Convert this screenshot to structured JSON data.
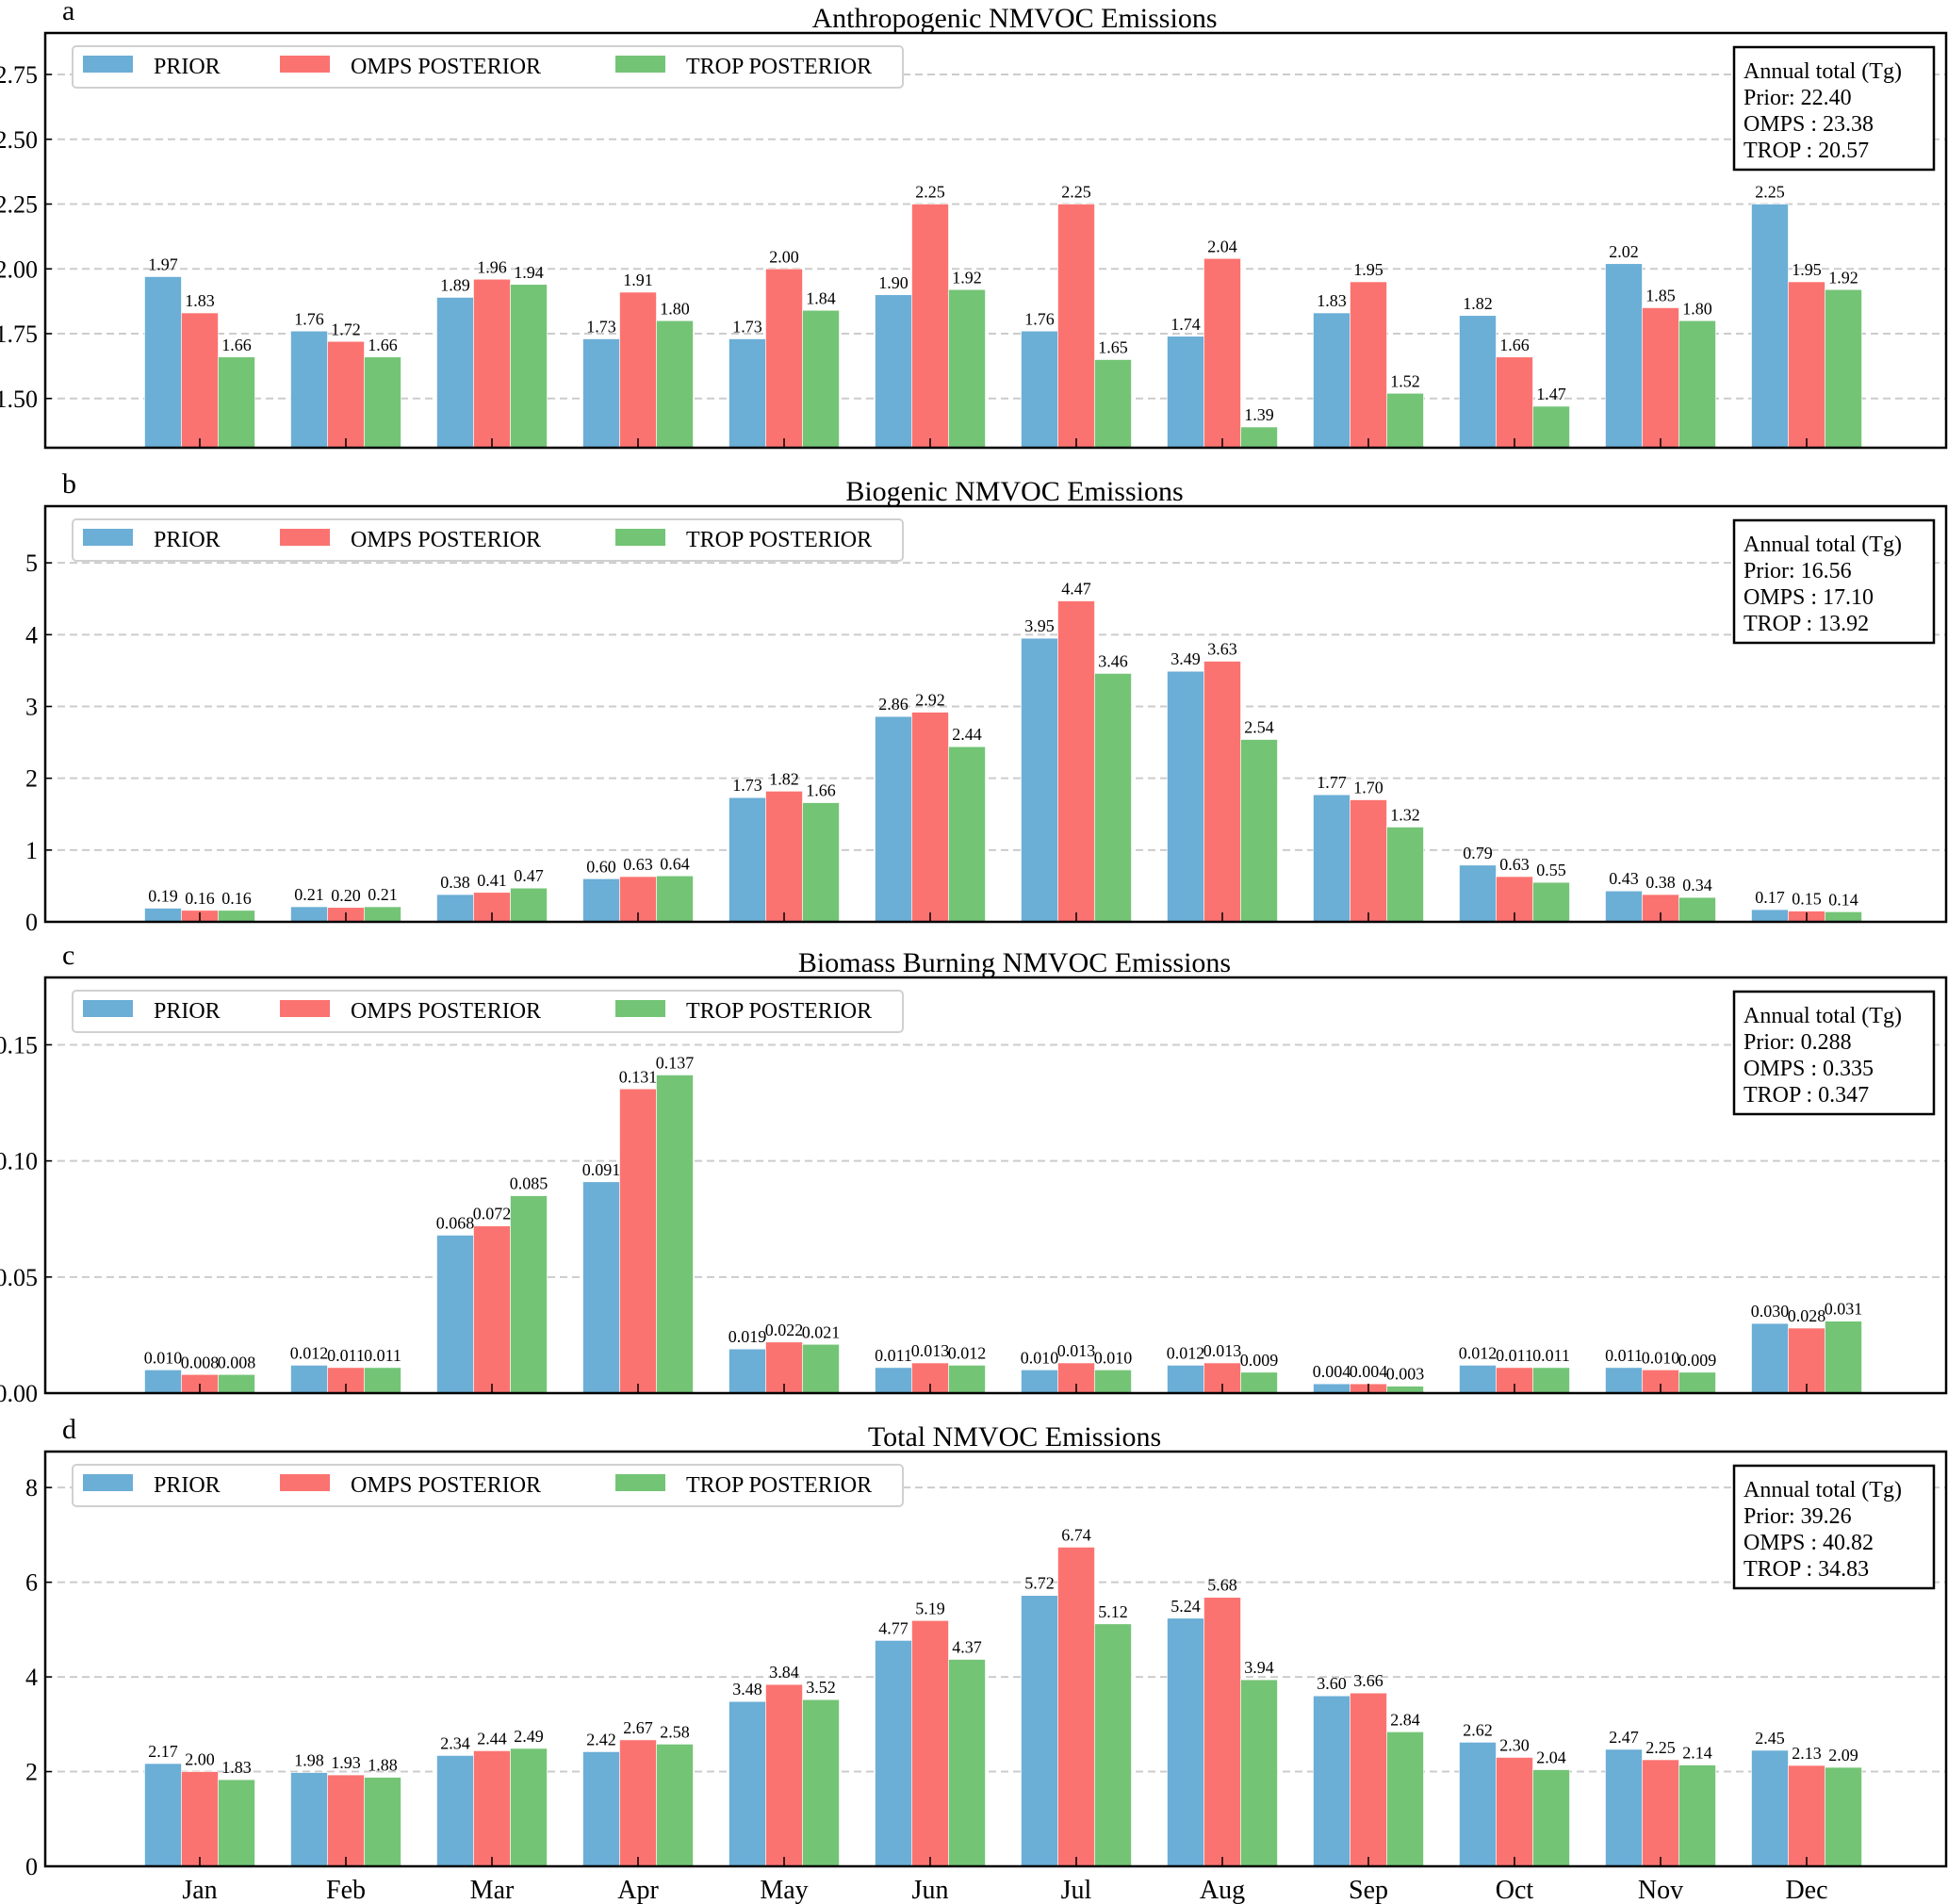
{
  "figure": {
    "months": [
      "Jan",
      "Feb",
      "Mar",
      "Apr",
      "May",
      "Jun",
      "Jul",
      "Aug",
      "Sep",
      "Oct",
      "Nov",
      "Dec"
    ],
    "legend_labels": [
      "PRIOR",
      "OMPS POSTERIOR",
      "TROP POSTERIOR"
    ],
    "colors": {
      "prior": "#6baed6",
      "omps": "#fb7370",
      "trop": "#74c476"
    }
  },
  "chart_data": [
    {
      "type": "bar",
      "panel_letter": "a",
      "title": "Anthropogenic NMVOC Emissions",
      "xlabel": "",
      "ylabel": "",
      "categories": [
        "Jan",
        "Feb",
        "Mar",
        "Apr",
        "May",
        "Jun",
        "Jul",
        "Aug",
        "Sep",
        "Oct",
        "Nov",
        "Dec"
      ],
      "ylim": [
        1.31,
        2.91
      ],
      "yticks": [
        1.5,
        1.75,
        2.0,
        2.25,
        2.5,
        2.75
      ],
      "ytick_labels": [
        "1.50",
        "1.75",
        "2.00",
        "2.25",
        "2.50",
        "2.75"
      ],
      "grid": true,
      "legend_position": "top-left",
      "decimals": 2,
      "series": [
        {
          "name": "PRIOR",
          "values": [
            1.97,
            1.76,
            1.89,
            1.73,
            1.73,
            1.9,
            1.76,
            1.74,
            1.83,
            1.82,
            2.02,
            2.25
          ]
        },
        {
          "name": "OMPS POSTERIOR",
          "values": [
            1.83,
            1.72,
            1.96,
            1.91,
            2.0,
            2.25,
            2.25,
            2.04,
            1.95,
            1.66,
            1.85,
            1.95
          ]
        },
        {
          "name": "TROP POSTERIOR",
          "values": [
            1.66,
            1.66,
            1.94,
            1.8,
            1.84,
            1.92,
            1.65,
            1.39,
            1.52,
            1.47,
            1.8,
            1.92
          ]
        }
      ],
      "annotation": {
        "title": "Annual total (Tg)",
        "lines": [
          "Prior: 22.40",
          "OMPS : 23.38",
          "TROP : 20.57"
        ],
        "position": "top-right"
      }
    },
    {
      "type": "bar",
      "panel_letter": "b",
      "title": "Biogenic NMVOC Emissions",
      "xlabel": "",
      "ylabel": "",
      "categories": [
        "Jan",
        "Feb",
        "Mar",
        "Apr",
        "May",
        "Jun",
        "Jul",
        "Aug",
        "Sep",
        "Oct",
        "Nov",
        "Dec"
      ],
      "ylim": [
        0,
        5.79
      ],
      "yticks": [
        0,
        1,
        2,
        3,
        4,
        5
      ],
      "ytick_labels": [
        "0",
        "1",
        "2",
        "3",
        "4",
        "5"
      ],
      "grid": true,
      "legend_position": "top-left",
      "decimals": 2,
      "series": [
        {
          "name": "PRIOR",
          "values": [
            0.19,
            0.21,
            0.38,
            0.6,
            1.73,
            2.86,
            3.95,
            3.49,
            1.77,
            0.79,
            0.43,
            0.17
          ]
        },
        {
          "name": "OMPS POSTERIOR",
          "values": [
            0.16,
            0.2,
            0.41,
            0.63,
            1.82,
            2.92,
            4.47,
            3.63,
            1.7,
            0.63,
            0.38,
            0.15
          ]
        },
        {
          "name": "TROP POSTERIOR",
          "values": [
            0.16,
            0.21,
            0.47,
            0.64,
            1.66,
            2.44,
            3.46,
            2.54,
            1.32,
            0.55,
            0.34,
            0.14
          ]
        }
      ],
      "annotation": {
        "title": "Annual total (Tg)",
        "lines": [
          "Prior: 16.56",
          "OMPS : 17.10",
          "TROP : 13.92"
        ],
        "position": "top-right"
      }
    },
    {
      "type": "bar",
      "panel_letter": "c",
      "title": "Biomass Burning NMVOC Emissions",
      "xlabel": "",
      "ylabel": "",
      "categories": [
        "Jan",
        "Feb",
        "Mar",
        "Apr",
        "May",
        "Jun",
        "Jul",
        "Aug",
        "Sep",
        "Oct",
        "Nov",
        "Dec"
      ],
      "ylim": [
        0,
        0.179
      ],
      "yticks": [
        0.0,
        0.05,
        0.1,
        0.15
      ],
      "ytick_labels": [
        "0.00",
        "0.05",
        "0.10",
        "0.15"
      ],
      "grid": true,
      "legend_position": "top-left",
      "decimals": 3,
      "series": [
        {
          "name": "PRIOR",
          "values": [
            0.01,
            0.012,
            0.068,
            0.091,
            0.019,
            0.011,
            0.01,
            0.012,
            0.004,
            0.012,
            0.011,
            0.03
          ]
        },
        {
          "name": "OMPS POSTERIOR",
          "values": [
            0.008,
            0.011,
            0.072,
            0.131,
            0.022,
            0.013,
            0.013,
            0.013,
            0.004,
            0.011,
            0.01,
            0.028
          ]
        },
        {
          "name": "TROP POSTERIOR",
          "values": [
            0.008,
            0.011,
            0.085,
            0.137,
            0.021,
            0.012,
            0.01,
            0.009,
            0.003,
            0.011,
            0.009,
            0.031
          ]
        }
      ],
      "annotation": {
        "title": "Annual total (Tg)",
        "lines": [
          "Prior: 0.288",
          "OMPS : 0.335",
          "TROP : 0.347"
        ],
        "position": "top-right"
      }
    },
    {
      "type": "bar",
      "panel_letter": "d",
      "title": "Total NMVOC Emissions",
      "xlabel": "",
      "ylabel": "",
      "categories": [
        "Jan",
        "Feb",
        "Mar",
        "Apr",
        "May",
        "Jun",
        "Jul",
        "Aug",
        "Sep",
        "Oct",
        "Nov",
        "Dec"
      ],
      "ylim": [
        0,
        8.76
      ],
      "yticks": [
        0,
        2,
        4,
        6,
        8
      ],
      "ytick_labels": [
        "0",
        "2",
        "4",
        "6",
        "8"
      ],
      "grid": true,
      "legend_position": "top-left",
      "decimals": 2,
      "series": [
        {
          "name": "PRIOR",
          "values": [
            2.17,
            1.98,
            2.34,
            2.42,
            3.48,
            4.77,
            5.72,
            5.24,
            3.6,
            2.62,
            2.47,
            2.45
          ]
        },
        {
          "name": "OMPS POSTERIOR",
          "values": [
            2.0,
            1.93,
            2.44,
            2.67,
            3.84,
            5.19,
            6.74,
            5.68,
            3.66,
            2.3,
            2.25,
            2.13
          ]
        },
        {
          "name": "TROP POSTERIOR",
          "values": [
            1.83,
            1.88,
            2.49,
            2.58,
            3.52,
            4.37,
            5.12,
            3.94,
            2.84,
            2.04,
            2.14,
            2.09
          ]
        }
      ],
      "annotation": {
        "title": "Annual total (Tg)",
        "lines": [
          "Prior: 39.26",
          "OMPS : 40.82",
          "TROP : 34.83"
        ],
        "position": "top-right"
      }
    }
  ]
}
